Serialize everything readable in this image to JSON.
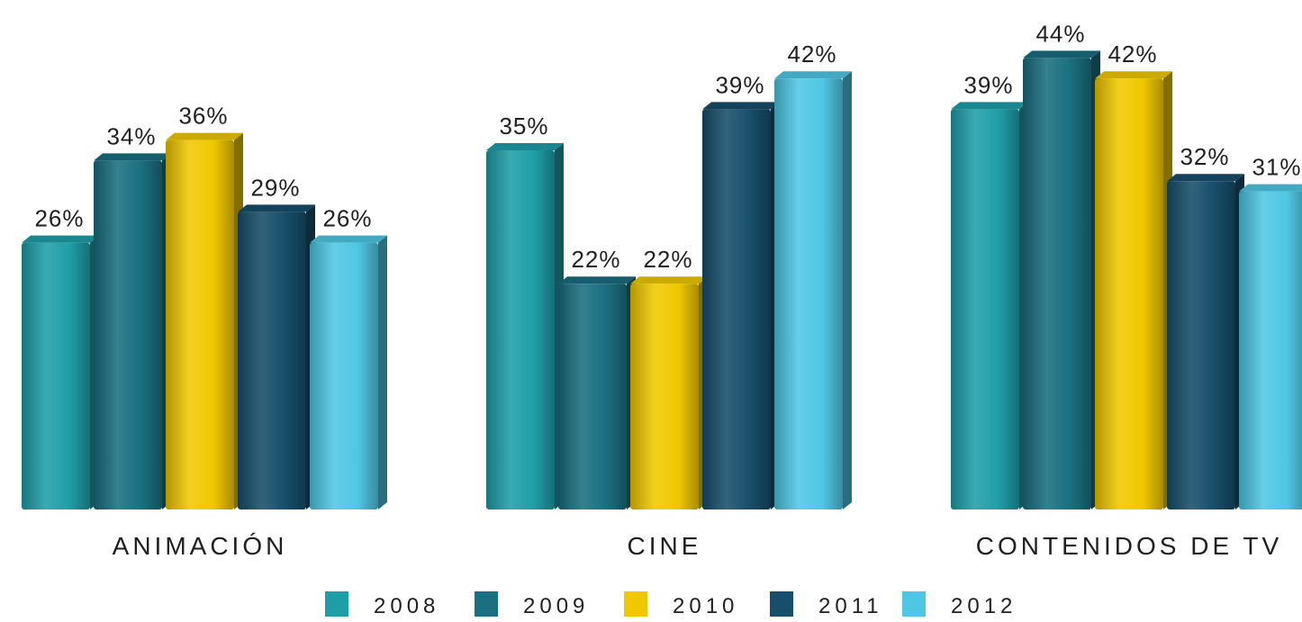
{
  "chart_data": {
    "type": "bar",
    "title": "",
    "xlabel": "",
    "ylabel": "",
    "categories": [
      "ANIMACIÓN",
      "CINE",
      "CONTENIDOS DE TV"
    ],
    "series": [
      {
        "name": "2008",
        "values": [
          26,
          35,
          39
        ],
        "labels": [
          "26%",
          "35%",
          "39%"
        ]
      },
      {
        "name": "2009",
        "values": [
          34,
          22,
          44
        ],
        "labels": [
          "34%",
          "22%",
          "44%"
        ]
      },
      {
        "name": "2010",
        "values": [
          36,
          22,
          42
        ],
        "labels": [
          "36%",
          "22%",
          "42%"
        ]
      },
      {
        "name": "2011",
        "values": [
          29,
          39,
          32
        ],
        "labels": [
          "29%",
          "39%",
          "32%"
        ]
      },
      {
        "name": "2012",
        "values": [
          26,
          42,
          31
        ],
        "labels": [
          "26%",
          "42%",
          "31%"
        ]
      }
    ],
    "ylim": [
      0,
      50
    ],
    "grid": false,
    "legend_position": "bottom",
    "colors": {
      "2008": "#1f9ea8",
      "2009": "#1a6f80",
      "2010": "#f0c800",
      "2011": "#174e6a",
      "2012": "#4fc7e4"
    }
  }
}
